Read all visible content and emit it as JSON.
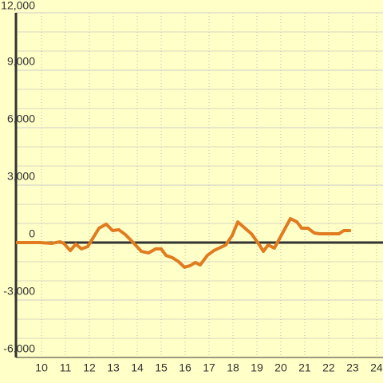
{
  "chart_data": {
    "type": "line",
    "x": [
      8.93,
      9.93,
      10.43,
      10.77,
      10.93,
      11.2,
      11.43,
      11.67,
      11.93,
      12.4,
      12.7,
      12.97,
      13.23,
      13.5,
      13.83,
      14.17,
      14.47,
      14.77,
      15.0,
      15.2,
      15.47,
      15.73,
      15.97,
      16.2,
      16.43,
      16.63,
      16.93,
      17.2,
      17.7,
      17.97,
      18.2,
      18.43,
      18.77,
      19.13,
      19.27,
      19.47,
      19.73,
      20.0,
      20.4,
      20.67,
      20.87,
      21.13,
      21.4,
      21.6,
      21.93,
      22.43,
      22.63,
      22.93
    ],
    "series": [
      {
        "color": "#e07b20",
        "values": [
          0,
          0,
          -40,
          40,
          -40,
          -420,
          -80,
          -330,
          -210,
          750,
          960,
          625,
          670,
          420,
          0,
          -460,
          -540,
          -330,
          -330,
          -670,
          -790,
          -1000,
          -1290,
          -1210,
          -1040,
          -1170,
          -670,
          -420,
          -125,
          375,
          1080,
          830,
          460,
          -170,
          -460,
          -125,
          -290,
          330,
          1250,
          1080,
          750,
          750,
          500,
          460,
          460,
          460,
          625,
          625
        ]
      }
    ],
    "xlim": [
      8.93,
      24.27
    ],
    "xticks": [
      10,
      11,
      12,
      13,
      14,
      15,
      16,
      17,
      18,
      19,
      20,
      21,
      22,
      23,
      24
    ],
    "ylim": [
      -6000,
      12000
    ],
    "yticks": [
      {
        "value": -6000,
        "label": "-6,000"
      },
      {
        "value": -3000,
        "label": "-3,000"
      },
      0,
      {
        "value": 3000,
        "label": "3,000"
      },
      {
        "value": 6000,
        "label": "6,000"
      },
      {
        "value": 9000,
        "label": "9,000"
      },
      {
        "value": 12000,
        "label": "12,000"
      }
    ],
    "y_minor_ticks": [
      -5000,
      -4000,
      -2000,
      -1000,
      1000,
      2000,
      4000,
      5000,
      7000,
      8000,
      10000,
      11000
    ],
    "grid": true
  }
}
